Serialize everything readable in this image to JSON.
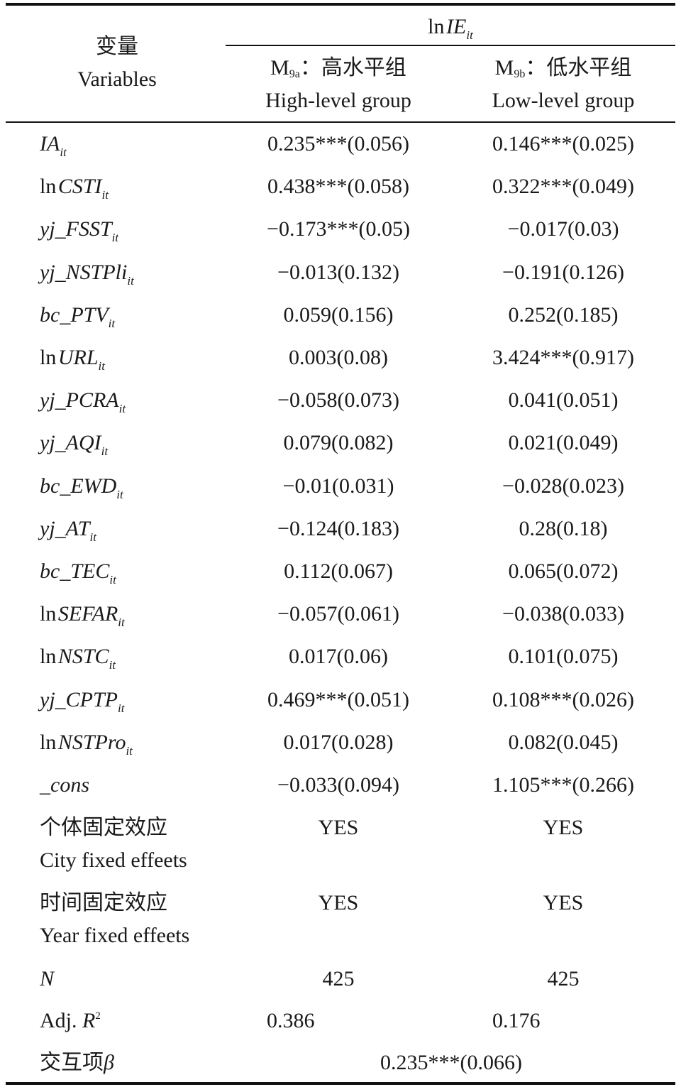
{
  "header": {
    "variables_zh": "变量",
    "variables_en": "Variables",
    "dependent": {
      "ln": "ln",
      "name": "IE",
      "sub": "it"
    },
    "columns": [
      {
        "model": "M",
        "model_sub": "9a",
        "label_zh": "：高水平组",
        "label_en": "High-level group"
      },
      {
        "model": "M",
        "model_sub": "9b",
        "label_zh": "：低水平组",
        "label_en": "Low-level group"
      }
    ]
  },
  "rows": [
    {
      "ln": "",
      "name": "IA",
      "sub": "it",
      "v1": "0.235***(0.056)",
      "v2": "0.146***(0.025)"
    },
    {
      "ln": "ln",
      "name": "CSTI",
      "sub": "it",
      "v1": "0.438***(0.058)",
      "v2": "0.322***(0.049)"
    },
    {
      "ln": "",
      "name": "yj_FSST",
      "sub": "it",
      "v1": "−0.173***(0.05)",
      "v2": "−0.017(0.03)"
    },
    {
      "ln": "",
      "name": "yj_NSTPli",
      "sub": "it",
      "v1": "−0.013(0.132)",
      "v2": "−0.191(0.126)"
    },
    {
      "ln": "",
      "name": "bc_PTV",
      "sub": "it",
      "v1": "0.059(0.156)",
      "v2": "0.252(0.185)"
    },
    {
      "ln": "ln",
      "name": "URL",
      "sub": "it",
      "v1": "0.003(0.08)",
      "v2": "3.424***(0.917)"
    },
    {
      "ln": "",
      "name": "yj_PCRA",
      "sub": "it",
      "v1": "−0.058(0.073)",
      "v2": "0.041(0.051)"
    },
    {
      "ln": "",
      "name": "yj_AQI",
      "sub": "it",
      "v1": "0.079(0.082)",
      "v2": "0.021(0.049)"
    },
    {
      "ln": "",
      "name": "bc_EWD",
      "sub": "it",
      "v1": "−0.01(0.031)",
      "v2": "−0.028(0.023)"
    },
    {
      "ln": "",
      "name": "yj_AT",
      "sub": "it",
      "v1": "−0.124(0.183)",
      "v2": "0.28(0.18)"
    },
    {
      "ln": "",
      "name": "bc_TEC",
      "sub": "it",
      "v1": "0.112(0.067)",
      "v2": "0.065(0.072)"
    },
    {
      "ln": "ln",
      "name": "SEFAR",
      "sub": "it",
      "v1": "−0.057(0.061)",
      "v2": "−0.038(0.033)"
    },
    {
      "ln": "ln",
      "name": "NSTC",
      "sub": "it",
      "v1": "0.017(0.06)",
      "v2": "0.101(0.075)"
    },
    {
      "ln": "",
      "name": "yj_CPTP",
      "sub": "it",
      "v1": "0.469***(0.051)",
      "v2": "0.108***(0.026)"
    },
    {
      "ln": "ln",
      "name": "NSTPro",
      "sub": "it",
      "v1": "0.017(0.028)",
      "v2": "0.082(0.045)"
    },
    {
      "ln": "",
      "name": "_cons",
      "sub": "",
      "v1": "−0.033(0.094)",
      "v2": "1.105***(0.266)"
    }
  ],
  "fixed_effects": [
    {
      "label_zh": "个体固定效应",
      "label_en": "City fixed effeets",
      "v1": "YES",
      "v2": "YES"
    },
    {
      "label_zh": "时间固定效应",
      "label_en": "Year fixed effeets",
      "v1": "YES",
      "v2": "YES"
    }
  ],
  "n_row": {
    "label": "N",
    "v1": "425",
    "v2": "425"
  },
  "r2_row": {
    "label": "Adj. ",
    "label_var": "R",
    "label_sup": "2",
    "v1": "0.386",
    "v2": "0.176"
  },
  "interaction_row": {
    "label": "交互项",
    "label_var": "β",
    "value": "0.235***(0.066)"
  }
}
